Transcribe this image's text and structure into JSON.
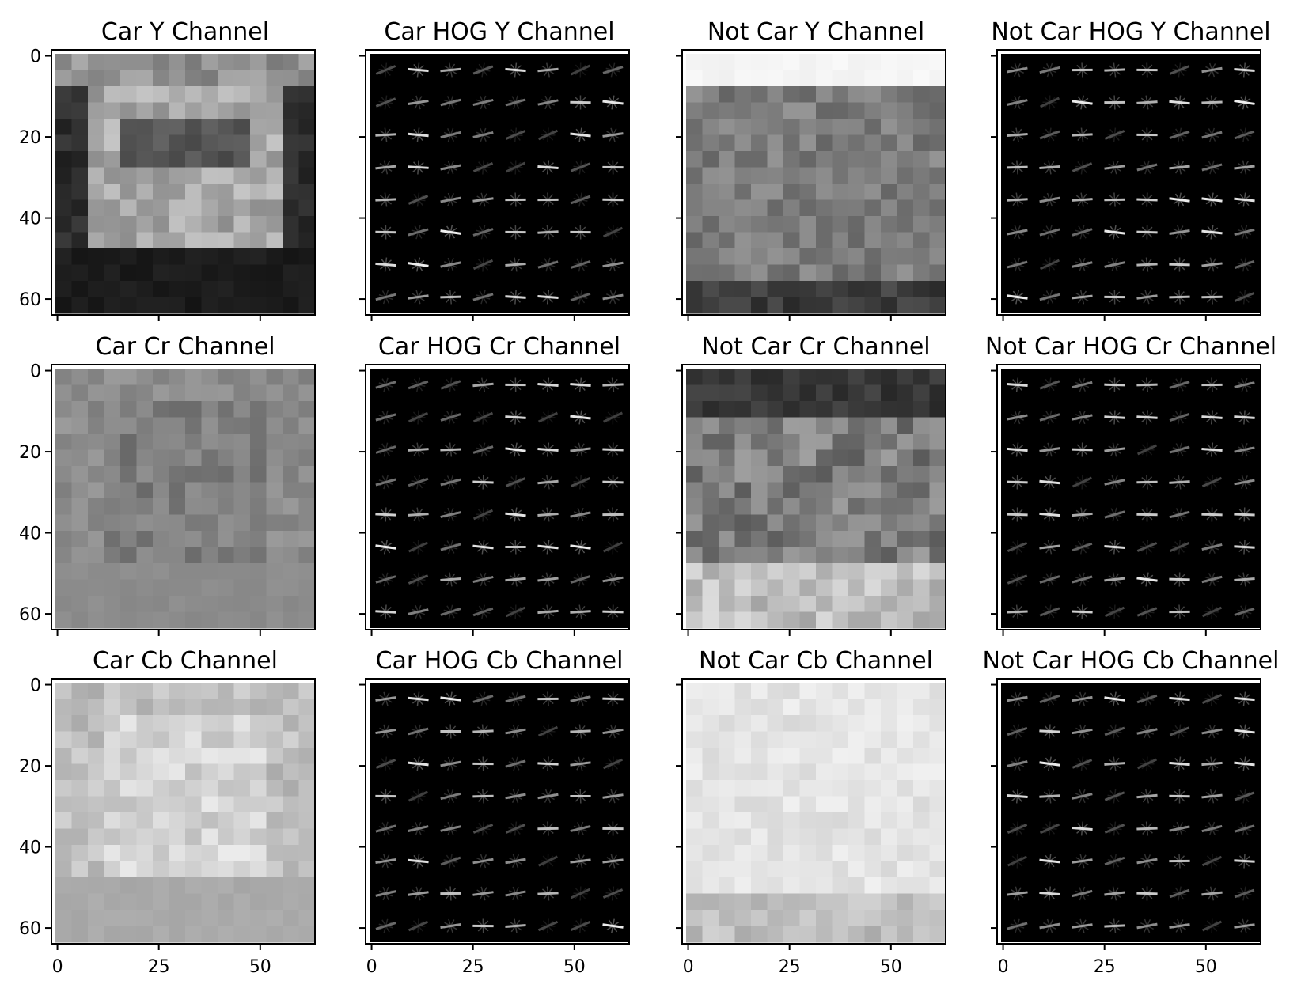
{
  "figure": {
    "panels": [
      {
        "title": "Car Y Channel",
        "kind": "car-y"
      },
      {
        "title": "Car HOG Y Channel",
        "kind": "hog"
      },
      {
        "title": "Not Car Y Channel",
        "kind": "notcar-y"
      },
      {
        "title": "Not Car HOG Y Channel",
        "kind": "hog"
      },
      {
        "title": "Car Cr Channel",
        "kind": "car-cr"
      },
      {
        "title": "Car HOG Cr Channel",
        "kind": "hog"
      },
      {
        "title": "Not Car Cr Channel",
        "kind": "notcar-cr"
      },
      {
        "title": "Not Car HOG Cr Channel",
        "kind": "hog"
      },
      {
        "title": "Car Cb Channel",
        "kind": "car-cb"
      },
      {
        "title": "Car HOG Cb Channel",
        "kind": "hog"
      },
      {
        "title": "Not Car Cb Channel",
        "kind": "notcar-cb"
      },
      {
        "title": "Not Car HOG Cb Channel",
        "kind": "hog"
      }
    ],
    "y_ticks": [
      "0",
      "20",
      "40",
      "60"
    ],
    "x_ticks": [
      "0",
      "25",
      "50"
    ],
    "colors": {
      "background": "#ffffff",
      "frame": "#000000",
      "hog_background": "#000000"
    }
  }
}
